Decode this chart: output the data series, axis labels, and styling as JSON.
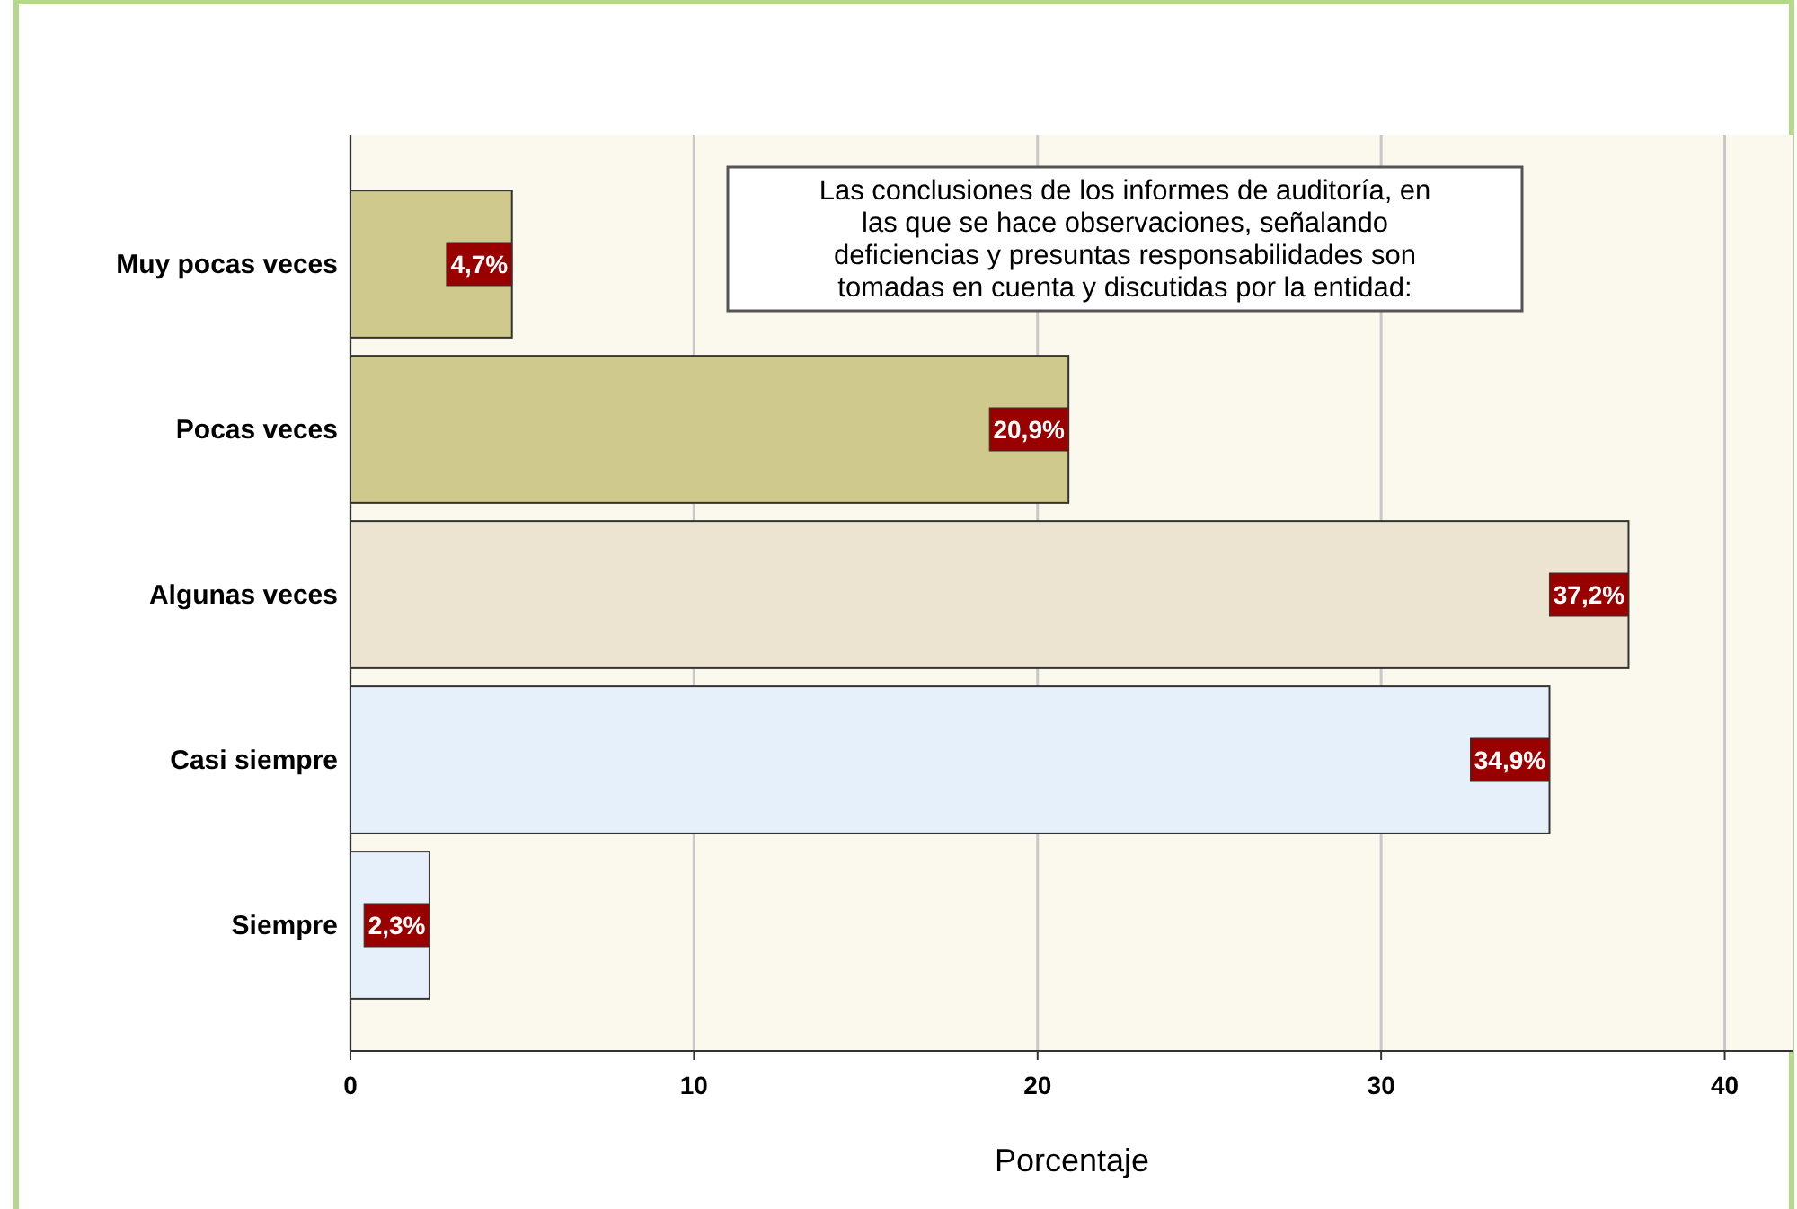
{
  "chart_data": {
    "type": "bar",
    "orientation": "horizontal",
    "categories": [
      "Muy pocas veces",
      "Pocas veces",
      "Algunas veces",
      "Casi siempre",
      "Siempre"
    ],
    "values": [
      4.7,
      20.9,
      37.2,
      34.9,
      2.3
    ],
    "colors": [
      "#cfc98d",
      "#cfc98d",
      "#ece4d0",
      "#e6f0fb",
      "#e6f0fb"
    ],
    "value_labels": [
      "4,7%",
      "20,9%",
      "37,2%",
      "34,9%",
      "2,3%"
    ],
    "xlim": [
      0,
      42
    ],
    "xticks": [
      0,
      10,
      20,
      30,
      40
    ],
    "grid": "x",
    "xlabel": "Porcentaje",
    "annotations": [
      "Las conclusiones de los informes de auditoría, en las que se hace observaciones, señalando deficiencias y presuntas responsabilidades son tomadas en cuenta y discutidas por la entidad:"
    ]
  }
}
